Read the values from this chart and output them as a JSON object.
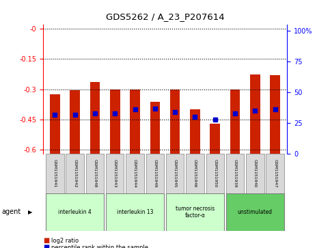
{
  "title": "GDS5262 / A_23_P207614",
  "samples": [
    "GSM1151941",
    "GSM1151942",
    "GSM1151948",
    "GSM1151943",
    "GSM1151944",
    "GSM1151949",
    "GSM1151945",
    "GSM1151946",
    "GSM1151950",
    "GSM1151939",
    "GSM1151940",
    "GSM1151947"
  ],
  "log2_ratios": [
    -0.325,
    -0.305,
    -0.263,
    -0.3,
    -0.3,
    -0.362,
    -0.3,
    -0.4,
    -0.47,
    -0.3,
    -0.225,
    -0.23
  ],
  "percentile_ranks": [
    32,
    32,
    33,
    33,
    36,
    37,
    34,
    30,
    28,
    33,
    35,
    36
  ],
  "groups": [
    {
      "label": "interleukin 4",
      "indices": [
        0,
        1,
        2
      ],
      "color": "#ccffcc"
    },
    {
      "label": "interleukin 13",
      "indices": [
        3,
        4,
        5
      ],
      "color": "#ccffcc"
    },
    {
      "label": "tumor necrosis\nfactor-α",
      "indices": [
        6,
        7,
        8
      ],
      "color": "#ccffcc"
    },
    {
      "label": "unstimulated",
      "indices": [
        9,
        10,
        11
      ],
      "color": "#66cc66"
    }
  ],
  "ylim_left": [
    -0.62,
    0.02
  ],
  "ylim_right": [
    0,
    105
  ],
  "yticks_left": [
    -0.6,
    -0.45,
    -0.3,
    -0.15,
    0.0
  ],
  "yticks_right": [
    0,
    25,
    50,
    75,
    100
  ],
  "bar_color": "#cc2200",
  "dot_color": "#0000cc",
  "background_color": "#ffffff",
  "plot_bg_color": "#ffffff",
  "agent_label": "agent",
  "legend_log2": "log2 ratio",
  "legend_pct": "percentile rank within the sample"
}
